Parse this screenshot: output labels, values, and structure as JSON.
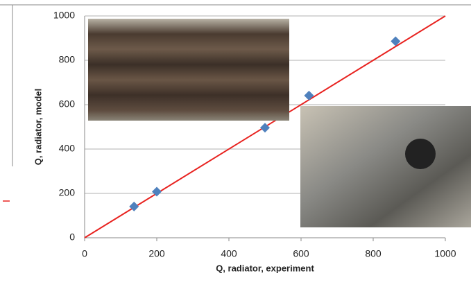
{
  "chart_data": {
    "type": "scatter",
    "x_label": "Q, radiator, experiment",
    "y_label": "Q, radiator, model",
    "series": [
      {
        "x": [
          137,
          200,
          500,
          622,
          862
        ],
        "values": [
          141,
          208,
          496,
          641,
          886
        ],
        "color": "#4f81bd"
      }
    ],
    "reference_line": {
      "x": [
        0,
        1000
      ],
      "values": [
        0,
        1000
      ],
      "color": "#e8221f"
    },
    "xlim": [
      0,
      1000
    ],
    "ylim": [
      0,
      1000
    ],
    "xticks": [
      0,
      200,
      400,
      600,
      800,
      1000
    ],
    "yticks": [
      0,
      200,
      400,
      600,
      800,
      1000
    ],
    "grid": true
  }
}
